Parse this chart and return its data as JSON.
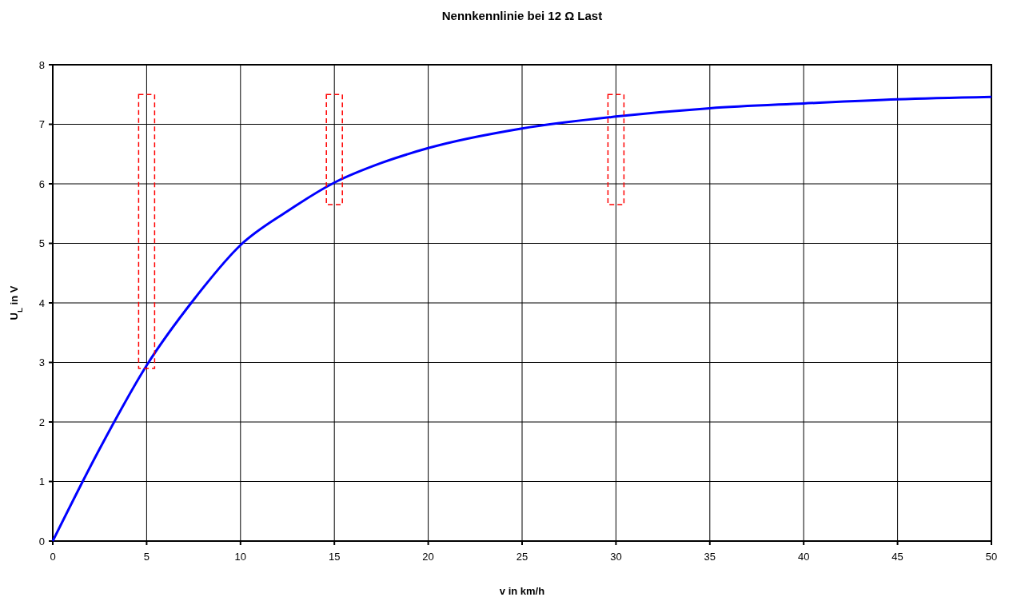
{
  "chart_data": {
    "type": "line",
    "title": "Nennkennlinie bei 12 Ω Last",
    "xlabel": "v in km/h",
    "ylabel": "U$_{L}$ in V",
    "xlim": [
      0,
      50
    ],
    "xticks": [
      0,
      5,
      10,
      15,
      20,
      25,
      30,
      35,
      40,
      45,
      50
    ],
    "ylim": [
      0,
      8
    ],
    "yticks": [
      0,
      1,
      2,
      3,
      4,
      5,
      6,
      7,
      8
    ],
    "grid": true,
    "series": [
      {
        "color": "#0000ff",
        "x": [
          0,
          2.5,
          5,
          7.5,
          10,
          12.5,
          15,
          17.5,
          20,
          25,
          30,
          35,
          40,
          45,
          50
        ],
        "values": [
          0,
          1.55,
          2.95,
          4.05,
          4.97,
          5.54,
          6.02,
          6.35,
          6.6,
          6.93,
          7.13,
          7.27,
          7.35,
          7.42,
          7.46
        ]
      },
      {
        "type": "bar",
        "color": "#ff0000",
        "line_style": "dashed",
        "x": [
          5,
          15,
          30
        ],
        "base": [
          2.9,
          5.65,
          5.65
        ],
        "values": [
          4.6,
          1.85,
          1.85
        ]
      }
    ]
  }
}
